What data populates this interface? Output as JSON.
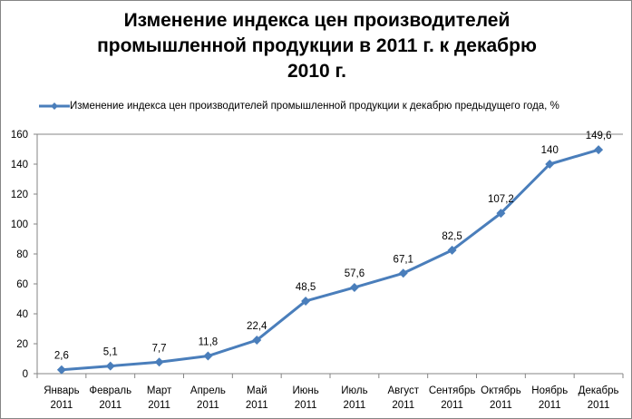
{
  "chart_data": {
    "type": "line",
    "title_lines": [
      "Изменение индекса цен производителей",
      "промышленной продукции в 2011 г. к декабрю",
      "2010 г."
    ],
    "categories": [
      [
        "Январь",
        "2011"
      ],
      [
        "Февраль",
        "2011"
      ],
      [
        "Март",
        "2011"
      ],
      [
        "Апрель",
        "2011"
      ],
      [
        "Май",
        "2011"
      ],
      [
        "Июнь",
        "2011"
      ],
      [
        "Июль",
        "2011"
      ],
      [
        "Август",
        "2011"
      ],
      [
        "Сентябрь",
        "2011"
      ],
      [
        "Октябрь",
        "2011"
      ],
      [
        "Ноябрь",
        "2011"
      ],
      [
        "Декабрь",
        "2011"
      ]
    ],
    "series": [
      {
        "name": "Изменение  индекса цен производителей  промышленной продукции к декабрю предыдущего  года, %",
        "values": [
          2.6,
          5.1,
          7.7,
          11.8,
          22.4,
          48.5,
          57.6,
          67.1,
          82.5,
          107.2,
          140,
          149.6
        ],
        "labels": [
          "2,6",
          "5,1",
          "7,7",
          "11,8",
          "22,4",
          "48,5",
          "57,6",
          "67,1",
          "82,5",
          "107,2",
          "140",
          "149,6"
        ],
        "color": "#4a7ebb"
      }
    ],
    "yticks": [
      0,
      20,
      40,
      60,
      80,
      100,
      120,
      140,
      160
    ],
    "ylim": [
      0,
      160
    ],
    "legend": "top"
  }
}
